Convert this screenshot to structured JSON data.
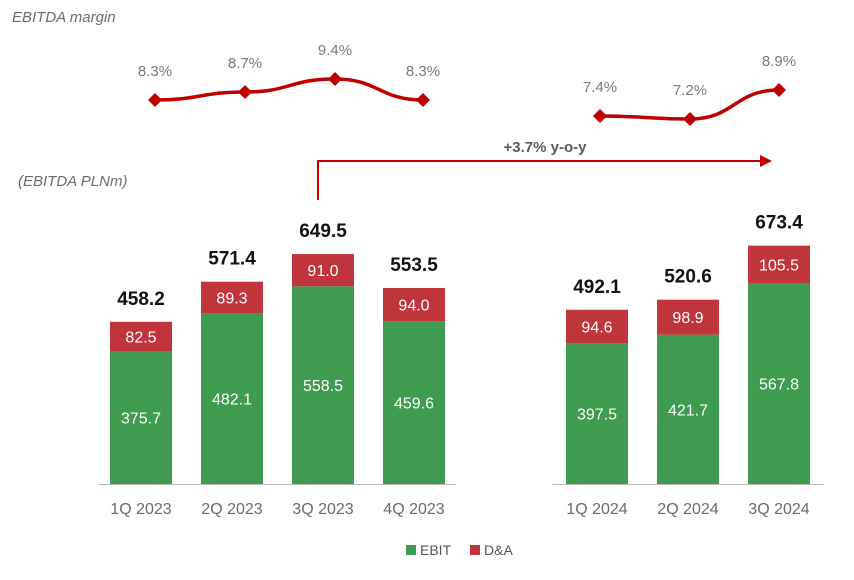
{
  "chart_data": {
    "type": "bar",
    "stacked": true,
    "categories": [
      "1Q 2023",
      "2Q 2023",
      "3Q 2023",
      "4Q 2023",
      "1Q 2024",
      "2Q 2024",
      "3Q 2024"
    ],
    "series": [
      {
        "name": "EBIT",
        "color": "#3f9b4f",
        "values": [
          375.7,
          482.1,
          558.5,
          459.6,
          397.5,
          421.7,
          567.8
        ]
      },
      {
        "name": "D&A",
        "color": "#c0353b",
        "values": [
          82.5,
          89.3,
          91.0,
          94.0,
          94.6,
          98.9,
          105.5
        ]
      }
    ],
    "segment_labels": {
      "EBIT": [
        "375.7",
        "482.1",
        "558.5",
        "459.6",
        "397.5",
        "421.7",
        "567.8"
      ],
      "D&A": [
        "82.5",
        "89.3",
        "91.0",
        "94.0",
        "94.6",
        "98.9",
        "105.5"
      ]
    },
    "totals": [
      458.2,
      571.4,
      649.5,
      553.5,
      492.1,
      520.6,
      673.4
    ],
    "total_labels": [
      "458.2",
      "571.4",
      "649.5",
      "553.5",
      "492.1",
      "520.6",
      "673.4"
    ],
    "ylabel": "(EBITDA PLNm)",
    "margin": {
      "title": "EBITDA margin",
      "values": [
        8.3,
        8.7,
        9.4,
        8.3,
        7.4,
        7.2,
        8.9
      ],
      "labels": [
        "8.3%",
        "8.7%",
        "9.4%",
        "8.3%",
        "7.4%",
        "7.2%",
        "8.9%"
      ],
      "color": "#c00000"
    },
    "annotation": "+3.7% y-o-y",
    "legend": [
      "EBIT",
      "D&A"
    ],
    "legend_position": "bottom-center",
    "grid": false
  }
}
